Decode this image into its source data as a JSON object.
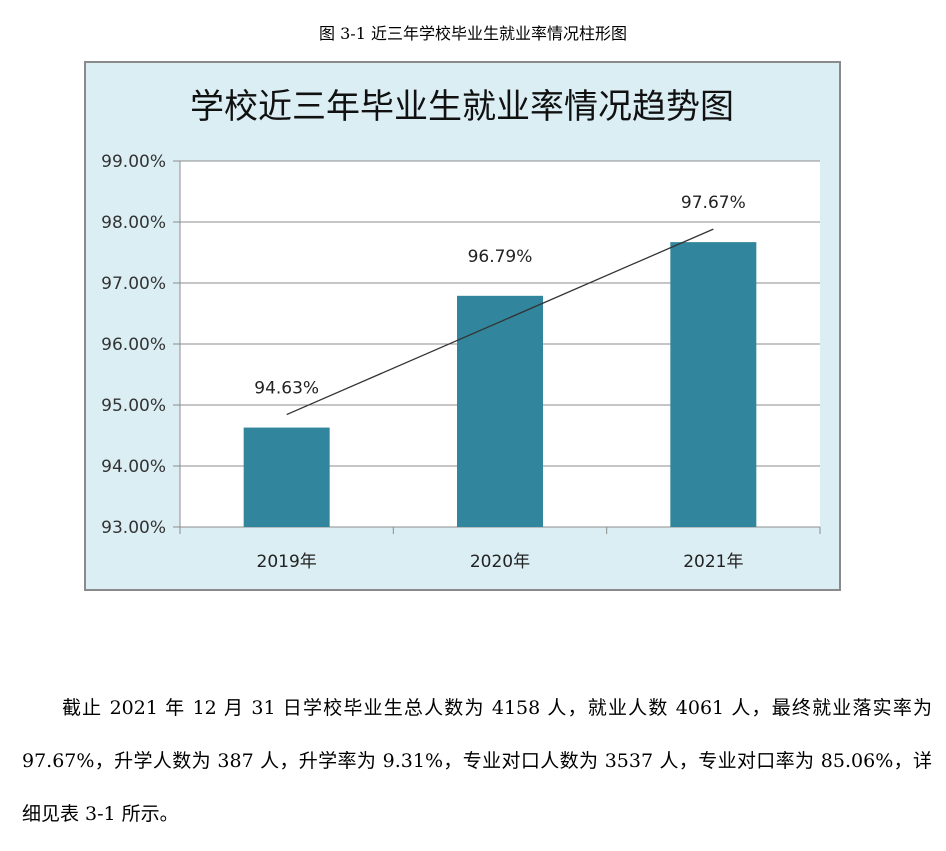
{
  "caption": "图 3-1 近三年学校毕业生就业率情况柱形图",
  "chart_data": {
    "type": "bar",
    "title": "学校近三年毕业生就业率情况趋势图",
    "categories": [
      "2019年",
      "2020年",
      "2021年"
    ],
    "values": [
      94.63,
      96.79,
      97.67
    ],
    "data_labels": [
      "94.63%",
      "96.79%",
      "97.67%"
    ],
    "ylim": [
      93,
      99
    ],
    "yticks": [
      "93.00%",
      "94.00%",
      "95.00%",
      "96.00%",
      "97.00%",
      "98.00%",
      "99.00%"
    ],
    "grid": true,
    "trendline": "linear",
    "legend": "none",
    "colors": {
      "bar": "#31859c",
      "background": "#dbeef4",
      "plot": "#ffffff",
      "trendline": "#333333"
    }
  },
  "paragraph": "截止 2021 年 12 月 31 日学校毕业生总人数为 4158 人，就业人数 4061 人，最终就业落实率为 97.67%，升学人数为 387 人，升学率为 9.31%，专业对口人数为 3537 人，专业对口率为 85.06%，详细见表 3-1 所示。"
}
